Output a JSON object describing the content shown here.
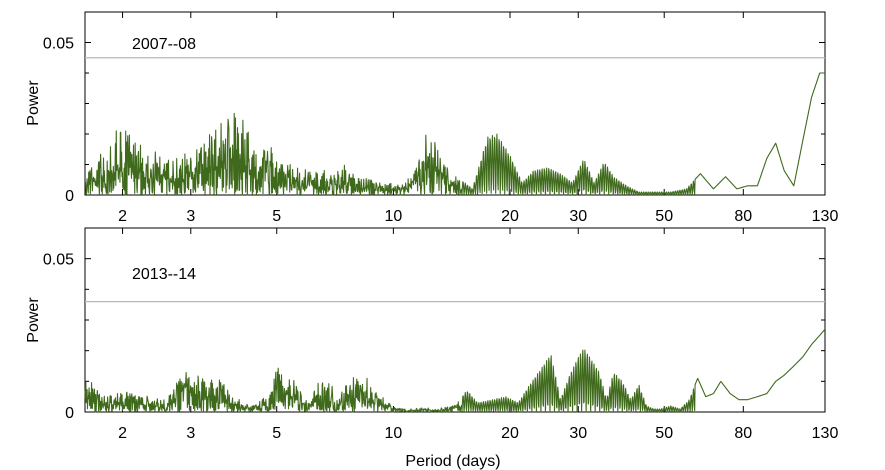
{
  "figure": {
    "xlabel": "Period (days)"
  },
  "colors": {
    "series": "#3f6a1c",
    "threshold": "#b8b8b8",
    "axes": "#000000"
  },
  "chart_data": [
    {
      "type": "line",
      "annotation": "2007--08",
      "ylabel": "Power",
      "xlabel": "",
      "x_scale": "log",
      "xlim": [
        1.6,
        130
      ],
      "ylim": [
        0,
        0.06
      ],
      "xticks": [
        2,
        3,
        5,
        10,
        20,
        30,
        50,
        80,
        130
      ],
      "yticks": [
        0,
        0.05
      ],
      "ytick_labels": [
        "0",
        "0.05"
      ],
      "threshold": 0.045,
      "grid": false,
      "series": [
        {
          "x": [
            1.6,
            1.8,
            2.0,
            2.3,
            2.6,
            3.0,
            3.4,
            3.9,
            4.4,
            5.0,
            5.7,
            6.5,
            7.5,
            8.5,
            10,
            11,
            12.3,
            13,
            14,
            16,
            17.5,
            18.5,
            20,
            21.5,
            23,
            25,
            27,
            29,
            31,
            33,
            35,
            37,
            40,
            43,
            47,
            52,
            57,
            62,
            67,
            72,
            77,
            82,
            87,
            92,
            97,
            102,
            108,
            114,
            120,
            126,
            130
          ],
          "y": [
            0.008,
            0.018,
            0.024,
            0.016,
            0.012,
            0.014,
            0.024,
            0.029,
            0.02,
            0.015,
            0.009,
            0.008,
            0.01,
            0.006,
            0.004,
            0.006,
            0.022,
            0.016,
            0.008,
            0.002,
            0.019,
            0.02,
            0.013,
            0.004,
            0.008,
            0.009,
            0.007,
            0.004,
            0.012,
            0.004,
            0.011,
            0.006,
            0.003,
            0.001,
            0.001,
            0.001,
            0.002,
            0.007,
            0.002,
            0.006,
            0.002,
            0.003,
            0.003,
            0.012,
            0.017,
            0.008,
            0.003,
            0.018,
            0.032,
            0.04,
            0.04
          ]
        }
      ]
    },
    {
      "type": "line",
      "annotation": "2013--14",
      "ylabel": "Power",
      "xlabel": "Period (days)",
      "x_scale": "log",
      "xlim": [
        1.6,
        130
      ],
      "ylim": [
        0,
        0.06
      ],
      "xticks": [
        2,
        3,
        5,
        10,
        20,
        30,
        50,
        80,
        130
      ],
      "yticks": [
        0,
        0.05
      ],
      "ytick_labels": [
        "0",
        "0.05"
      ],
      "threshold": 0.036,
      "grid": false,
      "series": [
        {
          "x": [
            1.6,
            1.8,
            2.0,
            2.3,
            2.6,
            2.8,
            3.0,
            3.4,
            3.9,
            4.4,
            4.8,
            5.1,
            5.5,
            6.0,
            6.6,
            7.1,
            7.6,
            8.2,
            9.0,
            10,
            11,
            12,
            13,
            14.5,
            15.5,
            16.5,
            18,
            19.5,
            21,
            22.5,
            24,
            25.5,
            27,
            28.5,
            30,
            31,
            32.5,
            34,
            35.5,
            37,
            39,
            41,
            43,
            45,
            47,
            49,
            52,
            55,
            58,
            61,
            64,
            67,
            70,
            74,
            78,
            82,
            87,
            92,
            97,
            102,
            108,
            114,
            120,
            126,
            130
          ],
          "y": [
            0.012,
            0.006,
            0.008,
            0.006,
            0.004,
            0.013,
            0.016,
            0.014,
            0.005,
            0.003,
            0.008,
            0.019,
            0.014,
            0.003,
            0.017,
            0.005,
            0.013,
            0.014,
            0.008,
            0.002,
            0.001,
            0.002,
            0.001,
            0.003,
            0.007,
            0.003,
            0.004,
            0.005,
            0.003,
            0.009,
            0.014,
            0.019,
            0.004,
            0.012,
            0.018,
            0.021,
            0.017,
            0.013,
            0.004,
            0.013,
            0.01,
            0.004,
            0.009,
            0.002,
            0.001,
            0.001,
            0.002,
            0.001,
            0.004,
            0.011,
            0.005,
            0.006,
            0.01,
            0.006,
            0.004,
            0.004,
            0.005,
            0.006,
            0.01,
            0.012,
            0.015,
            0.018,
            0.022,
            0.025,
            0.027
          ]
        }
      ]
    }
  ]
}
